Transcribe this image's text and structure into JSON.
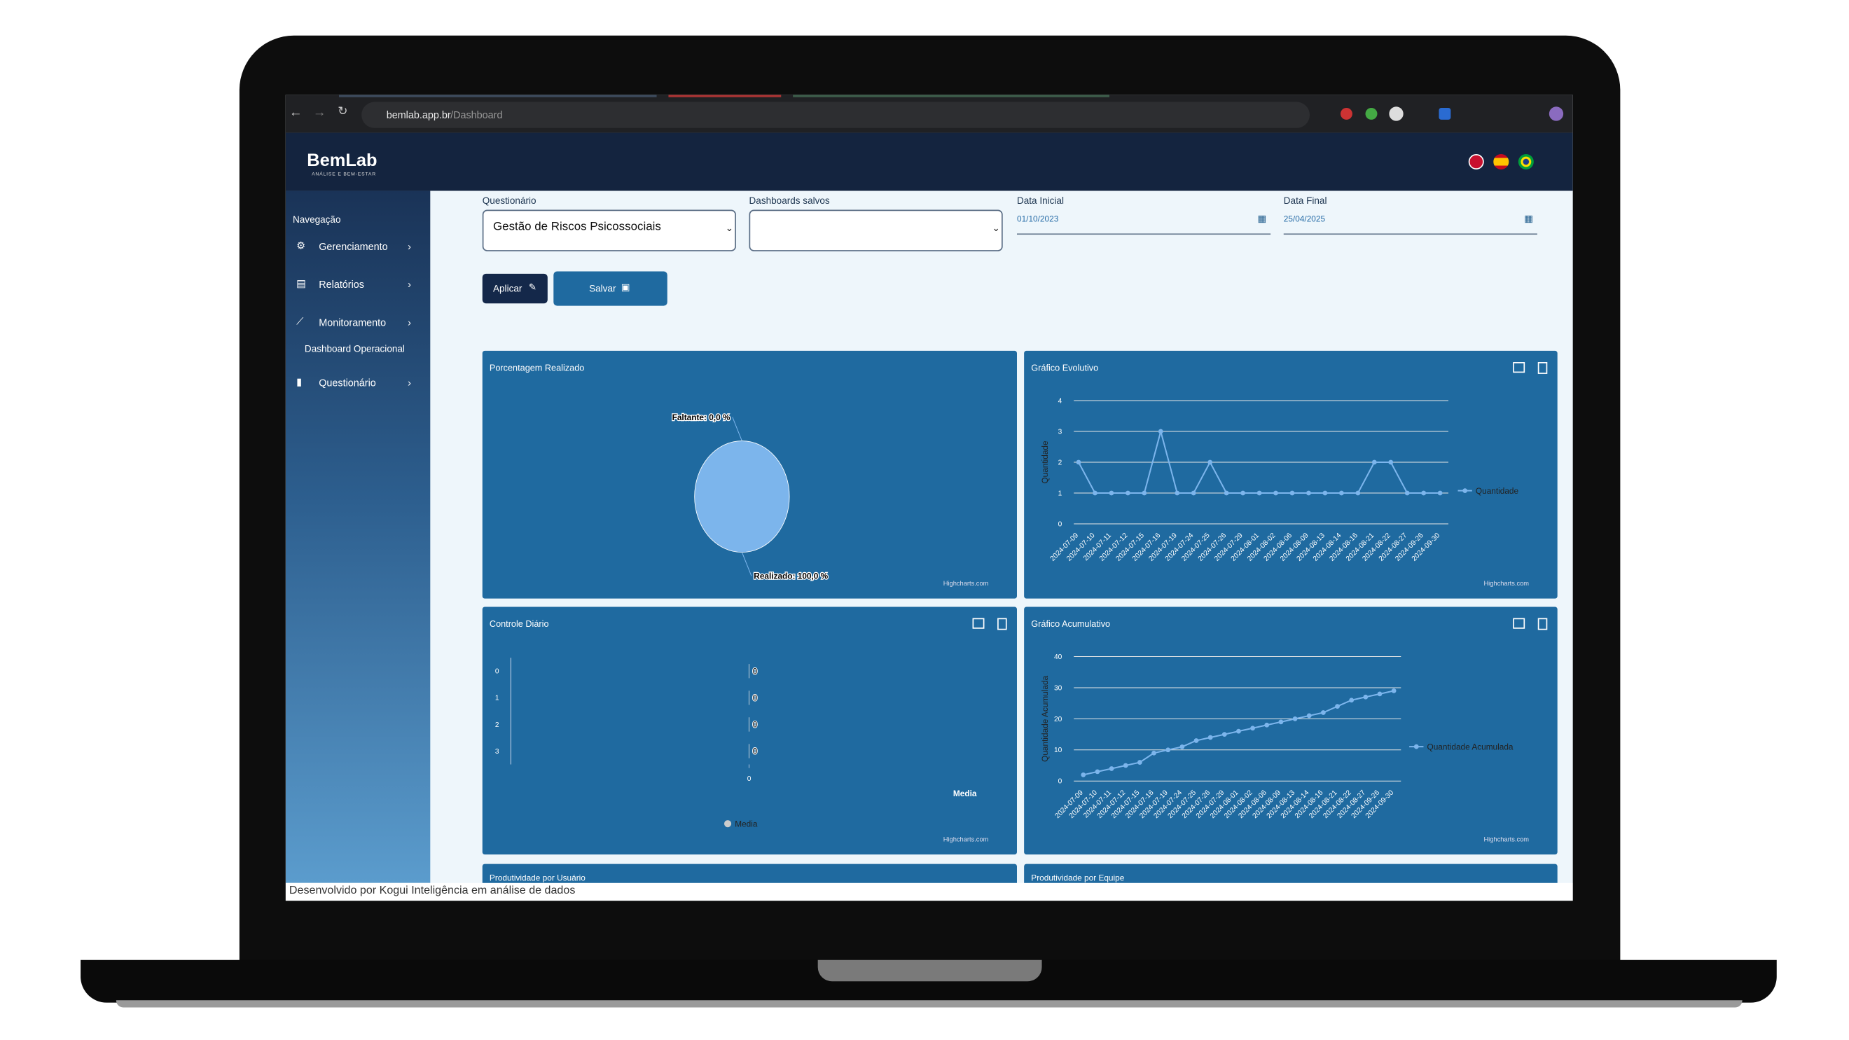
{
  "browser": {
    "url_host": "bemlab.app.br",
    "url_path": "/Dashboard"
  },
  "header": {
    "logo": "BemLab",
    "tagline": "ANÁLISE E BEM-ESTAR"
  },
  "sidebar": {
    "heading": "Navegação",
    "items": [
      "Gerenciamento",
      "Relatórios",
      "Monitoramento",
      "Questionário"
    ],
    "subitem": "Dashboard Operacional"
  },
  "form": {
    "questionario_label": "Questionário",
    "questionario_value": "Gestão de Riscos Psicossociais",
    "dashboards_label": "Dashboards salvos",
    "data_inicial_label": "Data Inicial",
    "data_inicial_value": "01/10/2023",
    "data_final_label": "Data Final",
    "data_final_value": "25/04/2025",
    "apply_button": "Aplicar",
    "save_button": "Salvar"
  },
  "chart_data": [
    {
      "type": "pie",
      "title": "Porcentagem Realizado",
      "categories": [
        "Faltante",
        "Realizado"
      ],
      "values": [
        0,
        100
      ],
      "value_labels": [
        "Faltante: 0,0 %",
        "Realizado: 100,0 %"
      ],
      "color": "#7cb5ec",
      "credit": "Highcharts.com"
    },
    {
      "type": "line",
      "title": "Gráfico Evolutivo",
      "x": [
        "2024-07-09",
        "2024-07-10",
        "2024-07-11",
        "2024-07-12",
        "2024-07-15",
        "2024-07-16",
        "2024-07-19",
        "2024-07-24",
        "2024-07-25",
        "2024-07-26",
        "2024-07-29",
        "2024-08-01",
        "2024-08-02",
        "2024-08-06",
        "2024-08-09",
        "2024-08-13",
        "2024-08-14",
        "2024-08-16",
        "2024-08-21",
        "2024-08-22",
        "2024-08-27",
        "2024-09-26",
        "2024-09-30"
      ],
      "series": [
        {
          "name": "Quantidade",
          "color": "#7cb5ec",
          "values": [
            2,
            1,
            1,
            1,
            1,
            3,
            1,
            1,
            2,
            1,
            1,
            1,
            1,
            1,
            1,
            1,
            1,
            1,
            2,
            2,
            1,
            1,
            1
          ]
        }
      ],
      "y_label": "Quantidade",
      "ylim": [
        0,
        4
      ],
      "yticks": [
        0,
        1,
        2,
        3,
        4
      ],
      "grid": true,
      "legend": "right",
      "credit": "Highcharts.com"
    },
    {
      "type": "hbar",
      "title": "Controle Diário",
      "categories": [
        "0",
        "1",
        "2",
        "3"
      ],
      "series": [
        {
          "name": "Media",
          "color": "#cccccc",
          "values": [
            0,
            0,
            0,
            0
          ]
        }
      ],
      "x_label": "Media",
      "xlim": [
        -1,
        1
      ],
      "xticks": [
        0
      ],
      "legend": "bottom",
      "credit": "Highcharts.com"
    },
    {
      "type": "line",
      "title": "Gráfico Acumulativo",
      "x": [
        "2024-07-09",
        "2024-07-10",
        "2024-07-11",
        "2024-07-12",
        "2024-07-15",
        "2024-07-16",
        "2024-07-19",
        "2024-07-24",
        "2024-07-25",
        "2024-07-26",
        "2024-07-29",
        "2024-08-01",
        "2024-08-02",
        "2024-08-06",
        "2024-08-09",
        "2024-08-13",
        "2024-08-14",
        "2024-08-16",
        "2024-08-21",
        "2024-08-22",
        "2024-08-27",
        "2024-09-26",
        "2024-09-30"
      ],
      "series": [
        {
          "name": "Quantidade Acumulada",
          "color": "#7cb5ec",
          "values": [
            2,
            3,
            4,
            5,
            6,
            9,
            10,
            11,
            13,
            14,
            15,
            16,
            17,
            18,
            19,
            20,
            21,
            22,
            24,
            26,
            27,
            28,
            29
          ]
        }
      ],
      "y_label": "Quantidade Acumulada",
      "ylim": [
        0,
        40
      ],
      "yticks": [
        0,
        10,
        20,
        30,
        40
      ],
      "grid": true,
      "legend": "right",
      "credit": "Highcharts.com"
    }
  ],
  "more_panels": [
    "Produtividade por Usuário",
    "Produtividade por Equipe"
  ],
  "footer": "Desenvolvido por Kogui Inteligência em análise de dados"
}
